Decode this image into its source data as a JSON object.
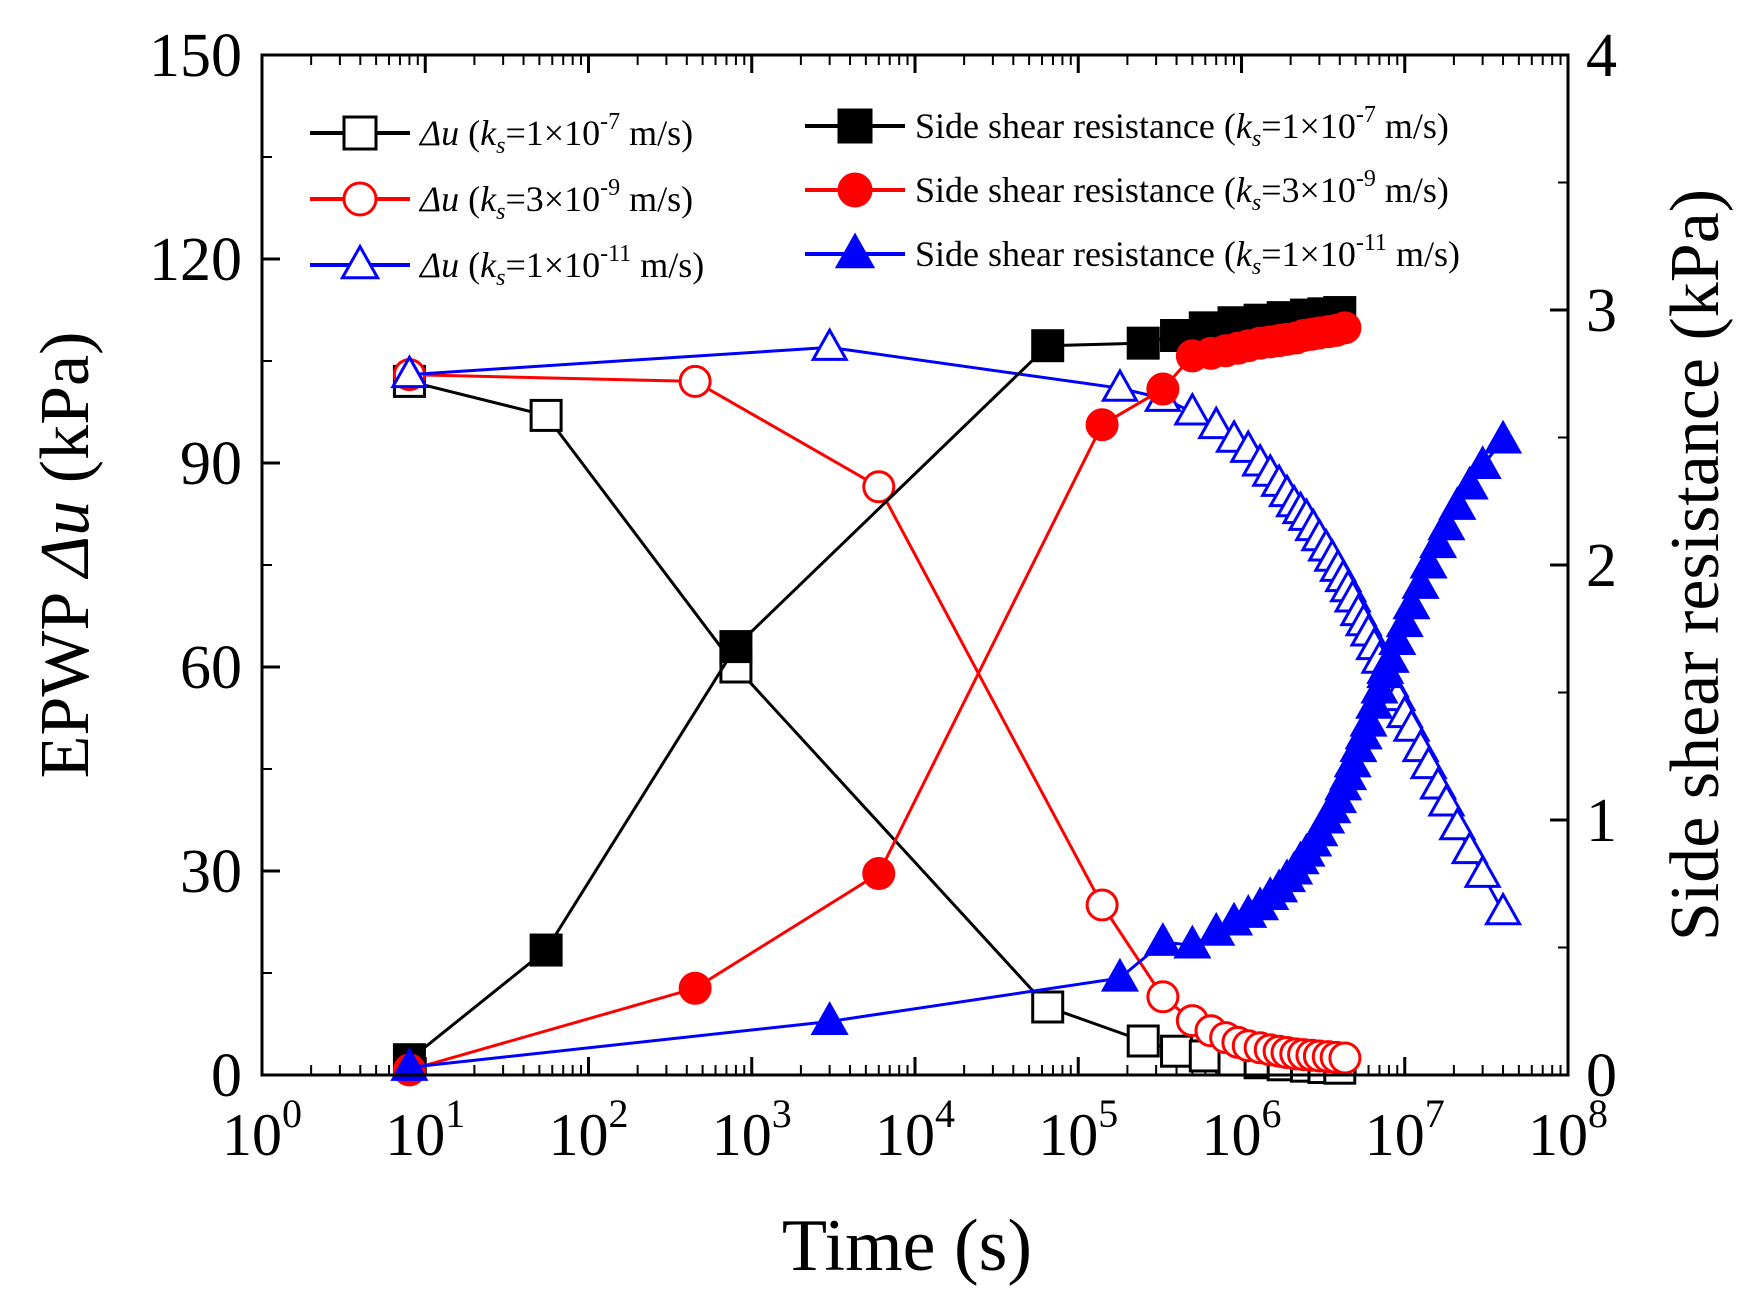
{
  "chart_data": {
    "type": "line",
    "xlabel": "Time (s)",
    "ylabel_left_prefix": "EPWP ",
    "ylabel_left_symbol": "Δu",
    "ylabel_left_suffix": " (kPa)",
    "ylabel_right": "Side shear resistance (kPa)",
    "x_scale": "log",
    "xlim_exponents": [
      0,
      8
    ],
    "x_tick_base": "10",
    "x_tick_exponents": [
      "0",
      "1",
      "2",
      "3",
      "4",
      "5",
      "6",
      "7",
      "8"
    ],
    "ylim_left": [
      0,
      150
    ],
    "y_left_ticks": [
      "0",
      "30",
      "60",
      "90",
      "120",
      "150"
    ],
    "ylim_right": [
      0,
      4
    ],
    "y_right_ticks": [
      "0",
      "1",
      "2",
      "3",
      "4"
    ],
    "colors": {
      "black": "#000000",
      "red": "#ff0000",
      "blue": "#0000ff"
    },
    "series": [
      {
        "name": "Δu (ks=1×10-7 m/s)",
        "legend": {
          "symbol": "Δu",
          "ks_value": "1×10",
          "ks_exp": "-7",
          "unit": " m/s"
        },
        "axis": "left",
        "color": "black",
        "marker": "square",
        "filled": false,
        "x": [
          8,
          55,
          800,
          65000,
          250000,
          400000,
          600000,
          900000,
          1300000,
          1800000,
          2500000,
          3200000,
          4000000
        ],
        "y": [
          102,
          97,
          60,
          10,
          5,
          3.5,
          2.8,
          2.2,
          1.8,
          1.5,
          1.3,
          1.1,
          1.0
        ]
      },
      {
        "name": "Δu (ks=3×10-9 m/s)",
        "legend": {
          "symbol": "Δu",
          "ks_value": "3×10",
          "ks_exp": "-9",
          "unit": " m/s"
        },
        "axis": "left",
        "color": "red",
        "marker": "circle",
        "filled": false,
        "x": [
          8,
          450,
          6000,
          140000,
          330000,
          500000,
          650000,
          800000,
          950000,
          1100000,
          1300000,
          1500000,
          1700000,
          1900000,
          2150000,
          2400000,
          2700000,
          3000000,
          3400000,
          3800000,
          4300000
        ],
        "y": [
          103,
          102,
          86.5,
          25,
          11.5,
          8,
          6.5,
          5.5,
          4.8,
          4.3,
          4.0,
          3.7,
          3.5,
          3.3,
          3.1,
          3.0,
          2.9,
          2.8,
          2.7,
          2.6,
          2.5
        ]
      },
      {
        "name": "Δu (ks=1×10-11 m/s)",
        "legend": {
          "symbol": "Δu",
          "ks_value": "1×10",
          "ks_exp": "-11",
          "unit": " m/s"
        },
        "axis": "left",
        "color": "blue",
        "marker": "triangle",
        "filled": false,
        "x": [
          8,
          3000,
          180000,
          330000,
          500000,
          700000,
          900000,
          1100000,
          1300000,
          1500000,
          1700000,
          1900000,
          2100000,
          2300000,
          2500000,
          2750000,
          3000000,
          3300000,
          3600000,
          3900000,
          4200000,
          4500000,
          4800000,
          5200000,
          5600000,
          6000000,
          6500000,
          7000000,
          7600000,
          8200000,
          9000000,
          10000000,
          11000000,
          12500000,
          14000000,
          16000000,
          18000000,
          21000000,
          25000000,
          30000000,
          40000000
        ],
        "y": [
          103,
          107,
          101,
          99.5,
          97.5,
          95.5,
          93.5,
          92,
          90,
          88.5,
          87,
          85.5,
          84,
          83,
          82,
          80.5,
          79,
          77.5,
          76,
          74.5,
          73,
          71.5,
          70,
          68,
          66.5,
          65,
          63,
          61,
          59.5,
          57.5,
          55.5,
          53,
          51,
          48,
          45.5,
          42.5,
          40,
          36.5,
          33,
          29.5,
          24
        ]
      },
      {
        "name": "Side shear resistance (ks=1×10-7 m/s)",
        "legend": {
          "prefix": "Side shear resistance ",
          "ks_value": "1×10",
          "ks_exp": "-7",
          "unit": " m/s"
        },
        "axis": "right",
        "color": "black",
        "marker": "square",
        "filled": true,
        "x": [
          8,
          55,
          800,
          65000,
          250000,
          400000,
          600000,
          900000,
          1300000,
          1800000,
          2500000,
          3200000,
          4000000
        ],
        "y": [
          0.06,
          0.49,
          1.68,
          2.86,
          2.87,
          2.9,
          2.93,
          2.95,
          2.96,
          2.97,
          2.98,
          2.985,
          2.99
        ]
      },
      {
        "name": "Side shear resistance (ks=3×10-9 m/s)",
        "legend": {
          "prefix": "Side shear resistance ",
          "ks_value": "3×10",
          "ks_exp": "-9",
          "unit": " m/s"
        },
        "axis": "right",
        "color": "red",
        "marker": "circle",
        "filled": true,
        "x": [
          8,
          450,
          6000,
          140000,
          330000,
          500000,
          650000,
          800000,
          950000,
          1100000,
          1300000,
          1500000,
          1700000,
          1900000,
          2150000,
          2400000,
          2700000,
          3000000,
          3400000,
          3800000,
          4300000
        ],
        "y": [
          0.02,
          0.34,
          0.79,
          2.55,
          2.69,
          2.82,
          2.83,
          2.84,
          2.85,
          2.86,
          2.87,
          2.875,
          2.88,
          2.885,
          2.89,
          2.9,
          2.905,
          2.91,
          2.915,
          2.92,
          2.93
        ]
      },
      {
        "name": "Side shear resistance (ks=1×10-11 m/s)",
        "legend": {
          "prefix": "Side shear resistance ",
          "ks_value": "1×10",
          "ks_exp": "-11",
          "unit": " m/s"
        },
        "axis": "right",
        "color": "blue",
        "marker": "triangle",
        "filled": true,
        "x": [
          8,
          3000,
          180000,
          330000,
          500000,
          700000,
          900000,
          1100000,
          1300000,
          1500000,
          1700000,
          1900000,
          2100000,
          2300000,
          2500000,
          2750000,
          3000000,
          3300000,
          3600000,
          3900000,
          4200000,
          4500000,
          4800000,
          5200000,
          5600000,
          6000000,
          6500000,
          7000000,
          7600000,
          8200000,
          9000000,
          10000000,
          11000000,
          12500000,
          14000000,
          16000000,
          18000000,
          21000000,
          25000000,
          30000000,
          40000000
        ],
        "y": [
          0.03,
          0.21,
          0.38,
          0.52,
          0.51,
          0.56,
          0.6,
          0.63,
          0.66,
          0.7,
          0.73,
          0.77,
          0.8,
          0.84,
          0.87,
          0.91,
          0.95,
          1.0,
          1.04,
          1.08,
          1.13,
          1.17,
          1.22,
          1.28,
          1.33,
          1.38,
          1.45,
          1.51,
          1.57,
          1.63,
          1.7,
          1.77,
          1.84,
          1.92,
          2.0,
          2.08,
          2.15,
          2.23,
          2.31,
          2.39,
          2.49
        ]
      }
    ]
  }
}
